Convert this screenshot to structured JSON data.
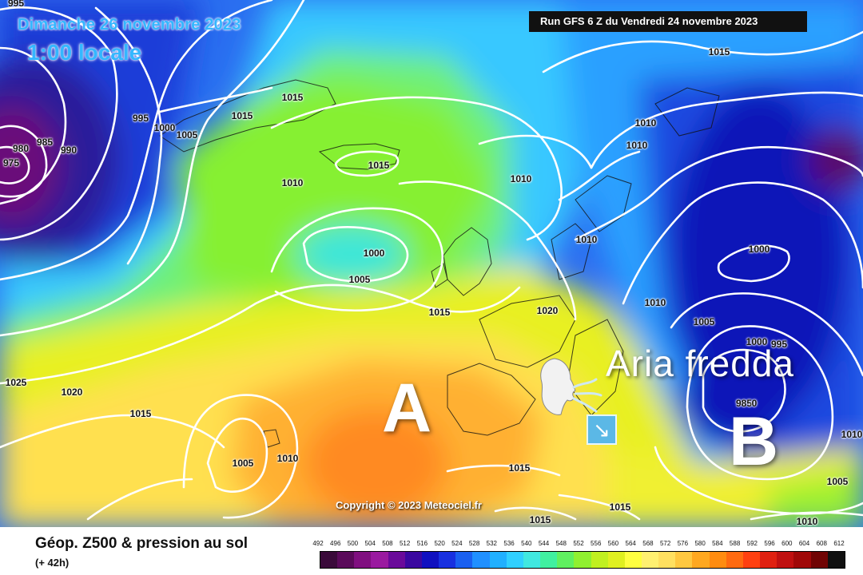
{
  "header": {
    "date": "Dimanche 26 novembre 2023",
    "time": "1:00 locale",
    "run": "Run GFS 6 Z du Vendredi 24 novembre 2023"
  },
  "annotations": {
    "high": "A",
    "low": "B",
    "cold_air": "Aria fredda",
    "wind_arrow_icon": "arrow-down-right-icon",
    "face_icon": "blowing-wind-face-icon"
  },
  "isobars": [
    {
      "label": "995"
    },
    {
      "label": "975"
    },
    {
      "label": "980"
    },
    {
      "label": "985"
    },
    {
      "label": "990"
    },
    {
      "label": "995"
    },
    {
      "label": "1000"
    },
    {
      "label": "1005"
    },
    {
      "label": "1015"
    },
    {
      "label": "1015"
    },
    {
      "label": "1015"
    },
    {
      "label": "1010"
    },
    {
      "label": "1000"
    },
    {
      "label": "1005"
    },
    {
      "label": "1015"
    },
    {
      "label": "1010"
    },
    {
      "label": "1015"
    },
    {
      "label": "1010"
    },
    {
      "label": "1010"
    },
    {
      "label": "1010"
    },
    {
      "label": "1020"
    },
    {
      "label": "1010"
    },
    {
      "label": "1005"
    },
    {
      "label": "1000"
    },
    {
      "label": "1000"
    },
    {
      "label": "995"
    },
    {
      "label": "985"
    },
    {
      "label": "0"
    },
    {
      "label": "1025"
    },
    {
      "label": "1020"
    },
    {
      "label": "1015"
    },
    {
      "label": "1005"
    },
    {
      "label": "1010"
    },
    {
      "label": "1015"
    },
    {
      "label": "1015"
    },
    {
      "label": "1015"
    },
    {
      "label": "1010"
    },
    {
      "label": "1005"
    },
    {
      "label": "1010"
    }
  ],
  "copyright": "Copyright © 2023 Meteociel.fr",
  "legend": {
    "title": "Géop. Z500 & pression au sol",
    "subtitle": "(+ 42h)",
    "scale": [
      "492",
      "496",
      "500",
      "504",
      "508",
      "512",
      "516",
      "520",
      "524",
      "528",
      "532",
      "536",
      "540",
      "544",
      "548",
      "552",
      "556",
      "560",
      "564",
      "568",
      "572",
      "576",
      "580",
      "584",
      "588",
      "592",
      "596",
      "600",
      "604",
      "608",
      "612"
    ],
    "colors": [
      "#3a0a3a",
      "#5a0a5a",
      "#800f80",
      "#9a1aa0",
      "#6a0a9a",
      "#3a08a0",
      "#1010c0",
      "#1830e0",
      "#1a60f0",
      "#2090ff",
      "#20b0ff",
      "#30d0ff",
      "#40e8e0",
      "#40f0a0",
      "#60f060",
      "#90f030",
      "#c0f020",
      "#e0f020",
      "#ffff40",
      "#fff070",
      "#ffe060",
      "#ffc840",
      "#ffa820",
      "#ff8c10",
      "#ff6a10",
      "#ff4010",
      "#e02010",
      "#c01010",
      "#a00808",
      "#700404",
      "#101010"
    ]
  }
}
